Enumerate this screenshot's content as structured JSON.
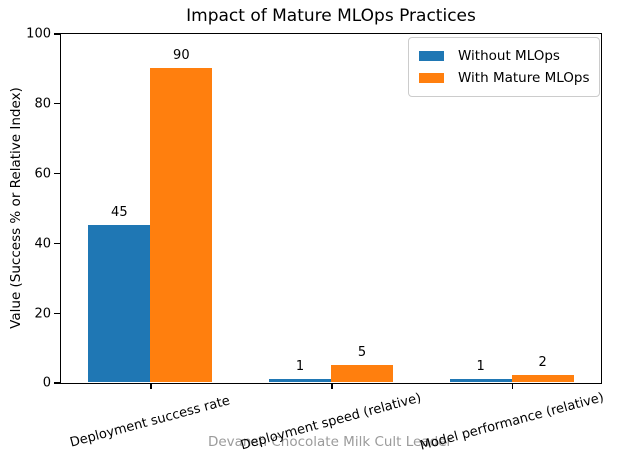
{
  "watermark": "Devansh Chocolate Milk Cult Leader",
  "chart_data": {
    "type": "bar",
    "title": "Impact of Mature MLOps Practices",
    "xlabel": "",
    "ylabel": "Value (Success % or Relative Index)",
    "categories": [
      "Deployment success rate",
      "Deployment speed (relative)",
      "Model performance (relative)"
    ],
    "series": [
      {
        "name": "Without MLOps",
        "color": "#1f77b4",
        "values": [
          45,
          1,
          1
        ]
      },
      {
        "name": "With Mature MLOps",
        "color": "#ff7f0e",
        "values": [
          90,
          5,
          2
        ]
      }
    ],
    "ylim": [
      0,
      100
    ],
    "yticks": [
      0,
      20,
      40,
      60,
      80,
      100
    ],
    "bar_labels": [
      [
        45,
        1,
        1
      ],
      [
        90,
        5,
        2
      ]
    ],
    "grid": false,
    "legend_position": "upper right",
    "xtick_rotation": 15,
    "background_color": "#ffffff",
    "text_color": "#000000"
  }
}
